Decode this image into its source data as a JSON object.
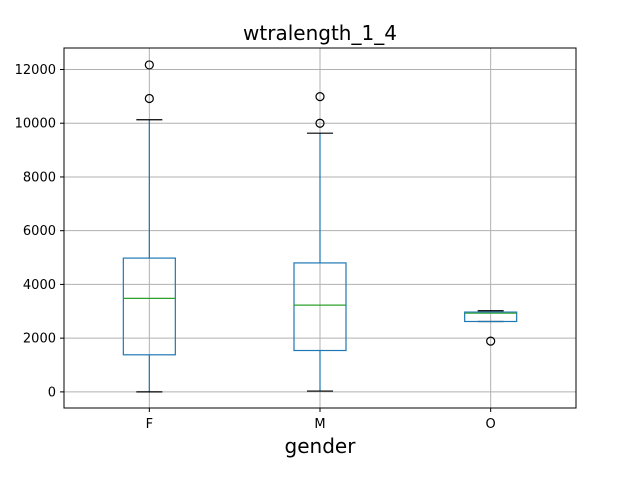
{
  "chart_data": {
    "type": "boxplot",
    "title": "wtralength_1_4",
    "xlabel": "gender",
    "ylabel": "",
    "categories": [
      "F",
      "M",
      "O"
    ],
    "ylim": [
      -600,
      12800
    ],
    "yticks": [
      0,
      2000,
      4000,
      6000,
      8000,
      10000,
      12000
    ],
    "grid": true,
    "boxes": [
      {
        "category": "F",
        "whisker_low": 0,
        "q1": 1380,
        "median": 3480,
        "q3": 4980,
        "whisker_high": 10130,
        "outliers": [
          10920,
          12170
        ]
      },
      {
        "category": "M",
        "whisker_low": 30,
        "q1": 1540,
        "median": 3230,
        "q3": 4800,
        "whisker_high": 9630,
        "outliers": [
          10000,
          10990
        ]
      },
      {
        "category": "O",
        "whisker_low": 2620,
        "q1": 2620,
        "median": 2930,
        "q3": 2970,
        "whisker_high": 3020,
        "outliers": [
          1890
        ]
      }
    ],
    "colors": {
      "box": "#1f77b4",
      "median": "#2ca02c",
      "whisker_cap": "#000000",
      "grid": "#b0b0b0",
      "outlier": "#000000"
    }
  }
}
